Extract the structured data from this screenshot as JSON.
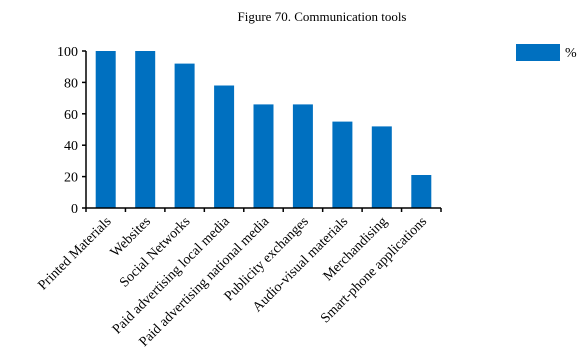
{
  "colors": {
    "bar": "#0070c0",
    "axis": "#000000"
  },
  "chart_data": {
    "type": "bar",
    "title": "Figure 70. Communication tools",
    "categories": [
      "Printed Materials",
      "Websites",
      "Social Networks",
      "Paid advertising local media",
      "Paid advertising national media",
      "Publicity exchanges",
      "Audio-visual materials",
      "Merchandising",
      "Smart-phone applications"
    ],
    "series": [
      {
        "name": "%",
        "values": [
          100,
          100,
          92,
          78,
          66,
          66,
          55,
          52,
          21
        ]
      }
    ],
    "ylim": [
      0,
      100
    ],
    "yticks": [
      "0",
      "20",
      "40",
      "60",
      "80",
      "100"
    ],
    "legend_position": "top-right",
    "grid": false
  }
}
